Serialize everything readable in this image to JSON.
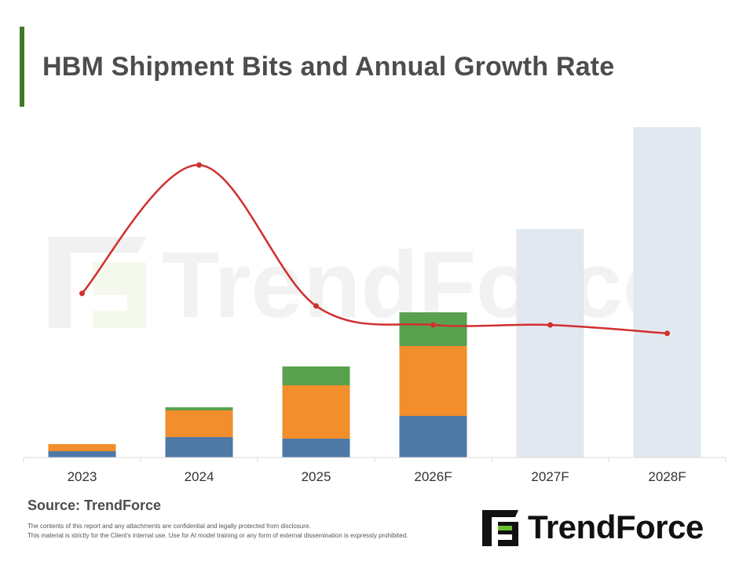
{
  "title": "HBM Shipment Bits and Annual Growth Rate",
  "source": "Source: TrendForce",
  "disclaimer": [
    "The contents of this report and any attachments are confidential and legally protected from disclosure.",
    "This material is strictly for the Client's internal use. Use for AI model training or any form of external dissemination is expressly prohibited."
  ],
  "logo": {
    "text": "TrendForce"
  },
  "watermark": "TrendForce",
  "colors": {
    "accent": "#3f7a2a",
    "series_blue": "#4e79a7",
    "series_orange": "#f28e2b",
    "series_green": "#59a14f",
    "forecast_bar": "#e2e8f0",
    "growth_line": "#d12f2f"
  },
  "chart_data": {
    "type": "bar",
    "stacked": true,
    "categories": [
      "2023",
      "2024",
      "2025",
      "2026F",
      "2027F",
      "2028F"
    ],
    "series": [
      {
        "values": [
          8,
          26,
          24,
          53,
          null,
          null
        ]
      },
      {
        "values": [
          9,
          34,
          68,
          89,
          null,
          null
        ]
      },
      {
        "values": [
          0,
          4,
          24,
          43,
          null,
          null
        ]
      },
      {
        "values": [
          null,
          null,
          null,
          null,
          291,
          421
        ]
      }
    ],
    "line": {
      "values": [
        0.78,
        1.39,
        0.72,
        0.63,
        0.63,
        0.59
      ]
    },
    "ylim": [
      0,
      421
    ],
    "line_ylim": [
      0,
      1.57
    ],
    "grid": false,
    "legend": "none"
  }
}
